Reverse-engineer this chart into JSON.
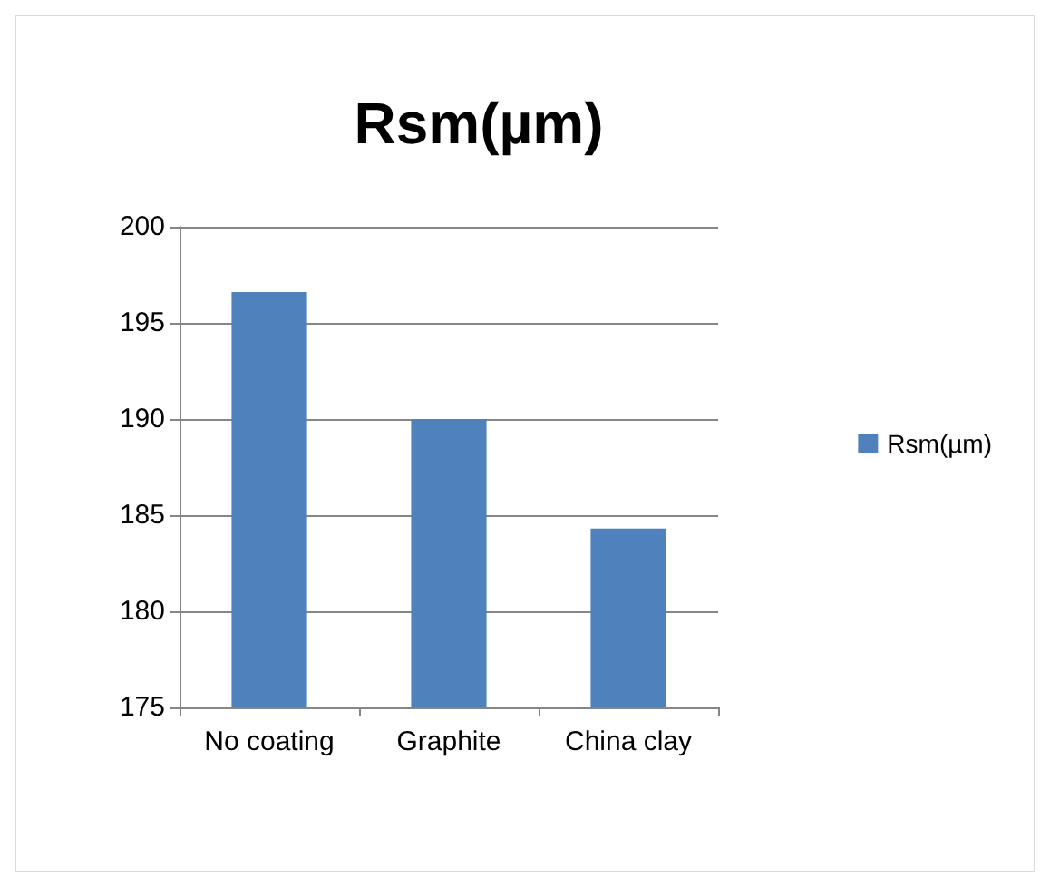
{
  "chart_data": {
    "type": "bar",
    "title": "Rsm(µm)",
    "categories": [
      "No coating",
      "Graphite",
      "China clay"
    ],
    "series": [
      {
        "name": "Rsm(µm)",
        "color": "#4f81bd",
        "values": [
          196.6,
          190.0,
          184.3
        ]
      }
    ],
    "ylim": [
      175,
      200
    ],
    "yticks": [
      175,
      180,
      185,
      190,
      195,
      200
    ],
    "grid": "y",
    "legend": "right"
  }
}
